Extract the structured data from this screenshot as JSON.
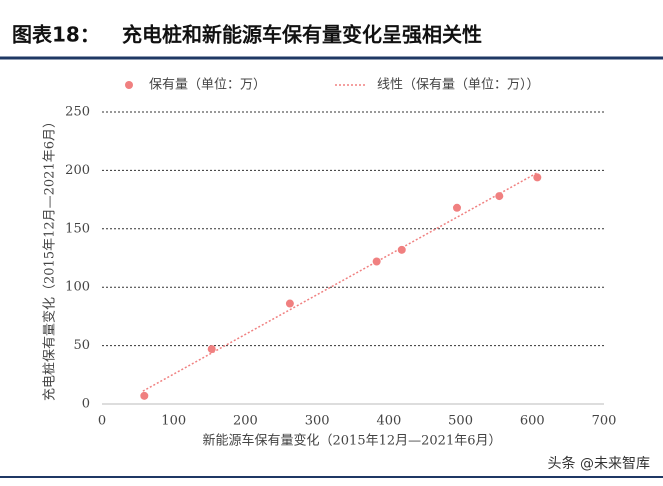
{
  "chart_data": {
    "type": "scatter",
    "figure_label": "图表18：",
    "title": "充电桩和新能源车保有量变化呈强相关性",
    "x_label": "新能源车保有量变化（2015年12月—2021年6月）",
    "y_label": "充电桩保有量变化（2015年12月—2021年6月）",
    "xlim": [
      0,
      700
    ],
    "xticks": [
      0,
      100,
      200,
      300,
      400,
      500,
      600,
      700
    ],
    "ylim": [
      0,
      250
    ],
    "yticks": [
      0,
      50,
      100,
      150,
      200,
      250
    ],
    "grid": true,
    "legend": "top",
    "series": [
      {
        "name": "保有量（单位：万）",
        "color": "#f08080",
        "style": "markers",
        "x": [
          59,
          153,
          262,
          383,
          418,
          495,
          554,
          607
        ],
        "values": [
          7,
          47,
          86,
          122,
          132,
          168,
          178,
          194
        ]
      },
      {
        "name": "线性（保有量（单位：万））",
        "color": "#f08080",
        "style": "dotted",
        "x": [
          57,
          607
        ],
        "values": [
          11,
          198
        ]
      }
    ]
  },
  "watermark": "头条 @未来智库"
}
